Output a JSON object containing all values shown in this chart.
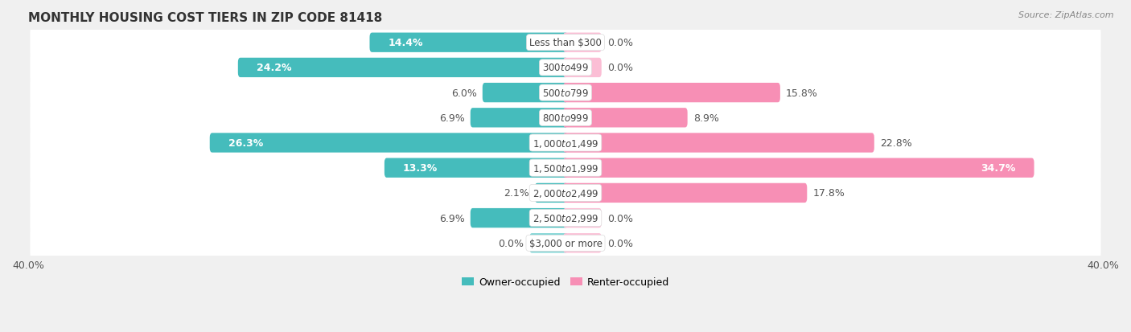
{
  "title": "MONTHLY HOUSING COST TIERS IN ZIP CODE 81418",
  "source": "Source: ZipAtlas.com",
  "categories": [
    "Less than $300",
    "$300 to $499",
    "$500 to $799",
    "$800 to $999",
    "$1,000 to $1,499",
    "$1,500 to $1,999",
    "$2,000 to $2,499",
    "$2,500 to $2,999",
    "$3,000 or more"
  ],
  "owner_values": [
    14.4,
    24.2,
    6.0,
    6.9,
    26.3,
    13.3,
    2.1,
    6.9,
    0.0
  ],
  "renter_values": [
    0.0,
    0.0,
    15.8,
    8.9,
    22.8,
    34.7,
    17.8,
    0.0,
    0.0
  ],
  "owner_color": "#45BCBC",
  "renter_color": "#F78FB5",
  "owner_color_light": "#7DD4D4",
  "renter_color_light": "#FBBED5",
  "bg_color": "#f0f0f0",
  "row_bg_color": "#ffffff",
  "zero_bar_size": 2.5,
  "axis_limit": 40.0,
  "label_fontsize": 9.0,
  "title_fontsize": 11,
  "legend_fontsize": 9,
  "source_fontsize": 8
}
